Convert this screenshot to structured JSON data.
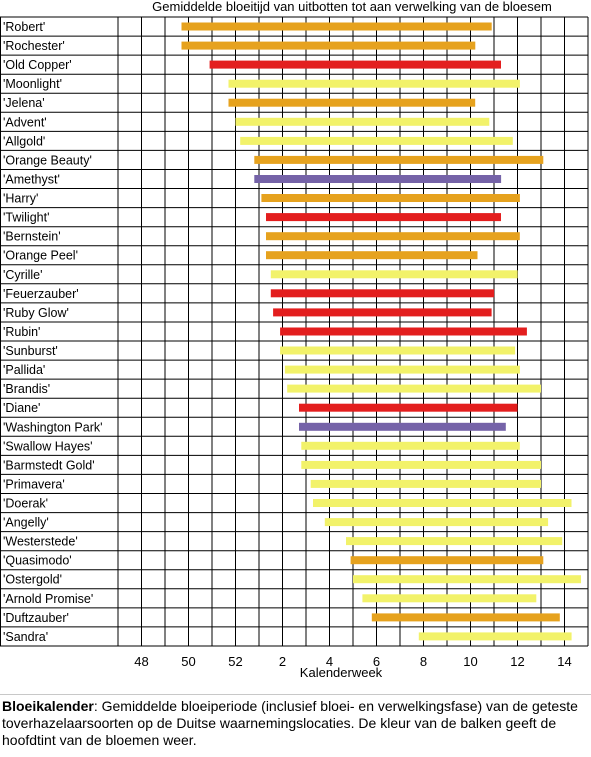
{
  "chart_data": {
    "type": "bar",
    "orientation": "horizontal",
    "title": "Gemiddelde bloeitijd van uitbotten tot aan verwelking van de bloesem",
    "xlabel": "Kalenderweek",
    "x_tick_labels": [
      "48",
      "50",
      "52",
      "2",
      "4",
      "6",
      "8",
      "10",
      "12",
      "14"
    ],
    "grid": true,
    "colors": {
      "orange": "#E6A21E",
      "red": "#E31E1E",
      "yellow": "#F2F26A",
      "purple": "#7563A8"
    },
    "categories": [
      "'Robert'",
      "'Rochester'",
      "'Old Copper'",
      "'Moonlight'",
      "'Jelena'",
      "'Advent'",
      "'Allgold'",
      "'Orange Beauty'",
      "'Amethyst'",
      "'Harry'",
      "'Twilight'",
      "'Bernstein'",
      "'Orange Peel'",
      "'Cyrille'",
      "'Feuerzauber'",
      "'Ruby Glow'",
      "'Rubin'",
      "'Sunburst'",
      "'Pallida'",
      "'Brandis'",
      "'Diane'",
      "'Washington Park'",
      "'Swallow Hayes'",
      "'Barmstedt Gold'",
      "'Primavera'",
      "'Doerak'",
      "'Angelly'",
      "'Westerstede'",
      "'Quasimodo'",
      "'Ostergold'",
      "'Arnold Promise'",
      "'Duftzauber'",
      "'Sandra'"
    ],
    "bars": [
      {
        "start": 49.7,
        "end": 62.9,
        "color": "orange"
      },
      {
        "start": 49.7,
        "end": 62.2,
        "color": "orange"
      },
      {
        "start": 50.9,
        "end": 63.3,
        "color": "red"
      },
      {
        "start": 51.7,
        "end": 64.1,
        "color": "yellow"
      },
      {
        "start": 51.7,
        "end": 62.2,
        "color": "orange"
      },
      {
        "start": 52.0,
        "end": 62.8,
        "color": "yellow"
      },
      {
        "start": 52.2,
        "end": 63.8,
        "color": "yellow"
      },
      {
        "start": 52.8,
        "end": 65.1,
        "color": "orange"
      },
      {
        "start": 52.8,
        "end": 63.3,
        "color": "purple"
      },
      {
        "start": 53.1,
        "end": 64.1,
        "color": "orange"
      },
      {
        "start": 53.3,
        "end": 63.3,
        "color": "red"
      },
      {
        "start": 53.3,
        "end": 64.1,
        "color": "orange"
      },
      {
        "start": 53.3,
        "end": 62.3,
        "color": "orange"
      },
      {
        "start": 53.5,
        "end": 64.0,
        "color": "yellow"
      },
      {
        "start": 53.5,
        "end": 63.0,
        "color": "red"
      },
      {
        "start": 53.6,
        "end": 62.9,
        "color": "red"
      },
      {
        "start": 53.9,
        "end": 64.4,
        "color": "red"
      },
      {
        "start": 53.9,
        "end": 63.9,
        "color": "yellow"
      },
      {
        "start": 54.1,
        "end": 64.1,
        "color": "yellow"
      },
      {
        "start": 54.2,
        "end": 65.0,
        "color": "yellow"
      },
      {
        "start": 54.7,
        "end": 64.0,
        "color": "red"
      },
      {
        "start": 54.7,
        "end": 63.5,
        "color": "purple"
      },
      {
        "start": 54.8,
        "end": 64.1,
        "color": "yellow"
      },
      {
        "start": 54.8,
        "end": 65.0,
        "color": "yellow"
      },
      {
        "start": 55.2,
        "end": 65.0,
        "color": "yellow"
      },
      {
        "start": 55.3,
        "end": 66.3,
        "color": "yellow"
      },
      {
        "start": 55.8,
        "end": 65.3,
        "color": "yellow"
      },
      {
        "start": 56.7,
        "end": 65.9,
        "color": "yellow"
      },
      {
        "start": 56.9,
        "end": 65.1,
        "color": "orange"
      },
      {
        "start": 57.0,
        "end": 66.7,
        "color": "yellow"
      },
      {
        "start": 57.4,
        "end": 64.8,
        "color": "yellow"
      },
      {
        "start": 57.8,
        "end": 65.8,
        "color": "orange"
      },
      {
        "start": 59.8,
        "end": 66.3,
        "color": "yellow"
      }
    ]
  },
  "caption": {
    "bold": "Bloeikalender",
    "text": ": Gemiddelde bloeiperiode (inclusief bloei- en verwelkingsfase) van de geteste toverhazelaarsoorten op de Duitse waarnemingslocaties. De kleur van de balken geeft de hoofdtint van de bloemen weer."
  }
}
